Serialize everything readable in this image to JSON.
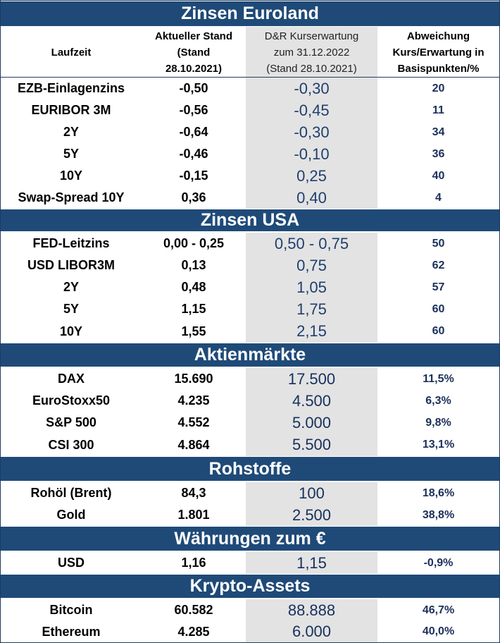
{
  "headers": {
    "laufzeit": "Laufzeit",
    "stand_line1": "Aktueller Stand",
    "stand_line2": "(Stand",
    "stand_line3": "28.10.2021)",
    "erwartung_line1": "D&R Kurserwartung",
    "erwartung_line2": "zum 31.12.2022",
    "erwartung_line3": "(Stand 28.10.2021)",
    "abweichung_line1": "Abweichung",
    "abweichung_line2": "Kurs/Erwartung in",
    "abweichung_line3": "Basispunkten/%"
  },
  "sections": [
    {
      "title": "Zinsen Euroland",
      "rows": [
        {
          "name": "EZB-Einlagenzins",
          "current": "-0,50",
          "expected": "-0,30",
          "deviation": "20"
        },
        {
          "name": "EURIBOR 3M",
          "current": "-0,56",
          "expected": "-0,45",
          "deviation": "11"
        },
        {
          "name": "2Y",
          "current": "-0,64",
          "expected": "-0,30",
          "deviation": "34"
        },
        {
          "name": "5Y",
          "current": "-0,46",
          "expected": "-0,10",
          "deviation": "36"
        },
        {
          "name": "10Y",
          "current": "-0,15",
          "expected": "0,25",
          "deviation": "40"
        },
        {
          "name": "Swap-Spread 10Y",
          "current": "0,36",
          "expected": "0,40",
          "deviation": "4"
        }
      ]
    },
    {
      "title": "Zinsen USA",
      "rows": [
        {
          "name": "FED-Leitzins",
          "current": "0,00 - 0,25",
          "expected": "0,50 - 0,75",
          "deviation": "50"
        },
        {
          "name": "USD LIBOR3M",
          "current": "0,13",
          "expected": "0,75",
          "deviation": "62"
        },
        {
          "name": "2Y",
          "current": "0,48",
          "expected": "1,05",
          "deviation": "57"
        },
        {
          "name": "5Y",
          "current": "1,15",
          "expected": "1,75",
          "deviation": "60"
        },
        {
          "name": "10Y",
          "current": "1,55",
          "expected": "2,15",
          "deviation": "60"
        }
      ]
    },
    {
      "title": "Aktienmärkte",
      "rows": [
        {
          "name": "DAX",
          "current": "15.690",
          "expected": "17.500",
          "deviation": "11,5%"
        },
        {
          "name": "EuroStoxx50",
          "current": "4.235",
          "expected": "4.500",
          "deviation": "6,3%"
        },
        {
          "name": "S&P 500",
          "current": "4.552",
          "expected": "5.000",
          "deviation": "9,8%"
        },
        {
          "name": "CSI 300",
          "current": "4.864",
          "expected": "5.500",
          "deviation": "13,1%"
        }
      ]
    },
    {
      "title": "Rohstoffe",
      "rows": [
        {
          "name": "Rohöl (Brent)",
          "current": "84,3",
          "expected": "100",
          "deviation": "18,6%"
        },
        {
          "name": "Gold",
          "current": "1.801",
          "expected": "2.500",
          "deviation": "38,8%"
        }
      ]
    },
    {
      "title": "Währungen zum €",
      "rows": [
        {
          "name": "USD",
          "current": "1,16",
          "expected": "1,15",
          "deviation": "-0,9%"
        }
      ]
    },
    {
      "title": "Krypto-Assets",
      "rows": [
        {
          "name": "Bitcoin",
          "current": "60.582",
          "expected": "88.888",
          "deviation": "46,7%"
        },
        {
          "name": "Ethereum",
          "current": "4.285",
          "expected": "6.000",
          "deviation": "40,0%"
        }
      ]
    }
  ],
  "colors": {
    "band": "#1f4a78",
    "expected_column_bg": "#e3e3e3",
    "expected_text": "#1f3f6e"
  }
}
